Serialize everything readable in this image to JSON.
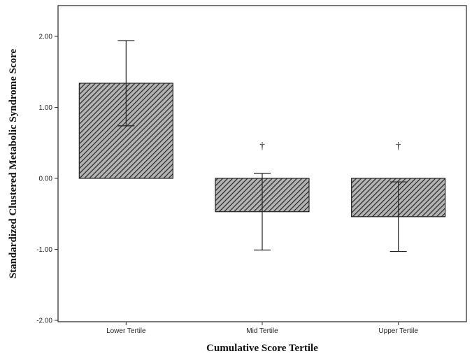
{
  "chart_data": {
    "type": "bar",
    "title": "",
    "xlabel": "Cumulative Score Tertile",
    "ylabel": "Standardized Clustered Metabolic Syndrome Score",
    "categories": [
      "Lower Tertile",
      "Mid Tertile",
      "Upper Tertile"
    ],
    "values": [
      1.34,
      -0.47,
      -0.54
    ],
    "error_upper": [
      1.94,
      0.07,
      -0.05
    ],
    "error_lower": [
      0.74,
      -1.01,
      -1.03
    ],
    "annotations": [
      "",
      "†",
      "†"
    ],
    "ylim": [
      -2.0,
      2.2
    ],
    "yticks": [
      -2.0,
      -1.0,
      0.0,
      1.0,
      2.0
    ],
    "ytick_labels": [
      "-2.00",
      "-1.00",
      "0.00",
      "1.00",
      "2.00"
    ],
    "grid": false,
    "legend": "none",
    "bar_fill": "hatched",
    "colors": {
      "bar_hatch": "#333333",
      "bar_bg": "#b0b0b0",
      "frame": "#333333"
    }
  }
}
